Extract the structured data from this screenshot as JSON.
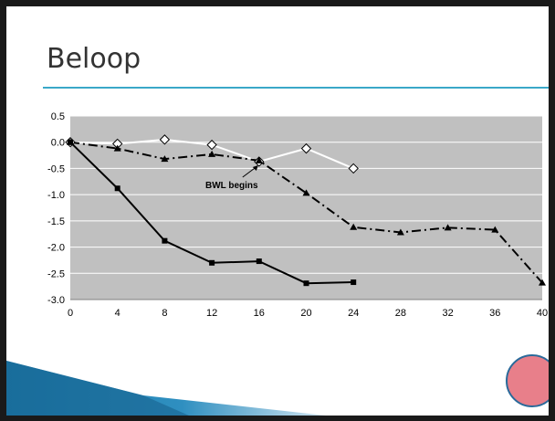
{
  "slide": {
    "title": "Beloop"
  },
  "colors": {
    "accent": "#3aa8c8",
    "plot_background": "#c0c0c0",
    "series_open_diamond": "#ffffff",
    "series_dashdot_triangle": "#000000",
    "series_solid_square": "#000000",
    "record_button": "#e87f8a"
  },
  "chart_data": {
    "type": "line",
    "title": "",
    "xlabel": "",
    "ylabel": "",
    "xlim": [
      0,
      40
    ],
    "ylim": [
      -3.0,
      0.5
    ],
    "x_ticks": [
      "0",
      "4",
      "8",
      "12",
      "16",
      "20",
      "24",
      "28",
      "32",
      "36",
      "40"
    ],
    "y_ticks": [
      "0.5",
      "0.0",
      "-0.5",
      "-1.0",
      "-1.5",
      "-2.0",
      "-2.5",
      "-3.0"
    ],
    "grid": true,
    "legend": "none",
    "series": [
      {
        "marker": "diamond-open",
        "line": "solid",
        "x": [
          0,
          4,
          8,
          12,
          16,
          20,
          24
        ],
        "values": [
          0.0,
          -0.03,
          0.05,
          -0.05,
          -0.37,
          -0.12,
          -0.5
        ]
      },
      {
        "marker": "triangle",
        "line": "dash-dot",
        "x": [
          0,
          4,
          8,
          12,
          16,
          20,
          24,
          28,
          32,
          36,
          40
        ],
        "values": [
          0.0,
          -0.12,
          -0.32,
          -0.23,
          -0.35,
          -0.97,
          -1.62,
          -1.72,
          -1.63,
          -1.67,
          -2.68
        ]
      },
      {
        "marker": "square",
        "line": "solid",
        "x": [
          0,
          4,
          8,
          12,
          16,
          20,
          24
        ],
        "values": [
          0.0,
          -0.88,
          -1.88,
          -2.3,
          -2.27,
          -2.69,
          -2.67
        ]
      }
    ],
    "annotations": [
      {
        "text": "BWL begins",
        "x": 16,
        "y": -0.37
      }
    ]
  }
}
